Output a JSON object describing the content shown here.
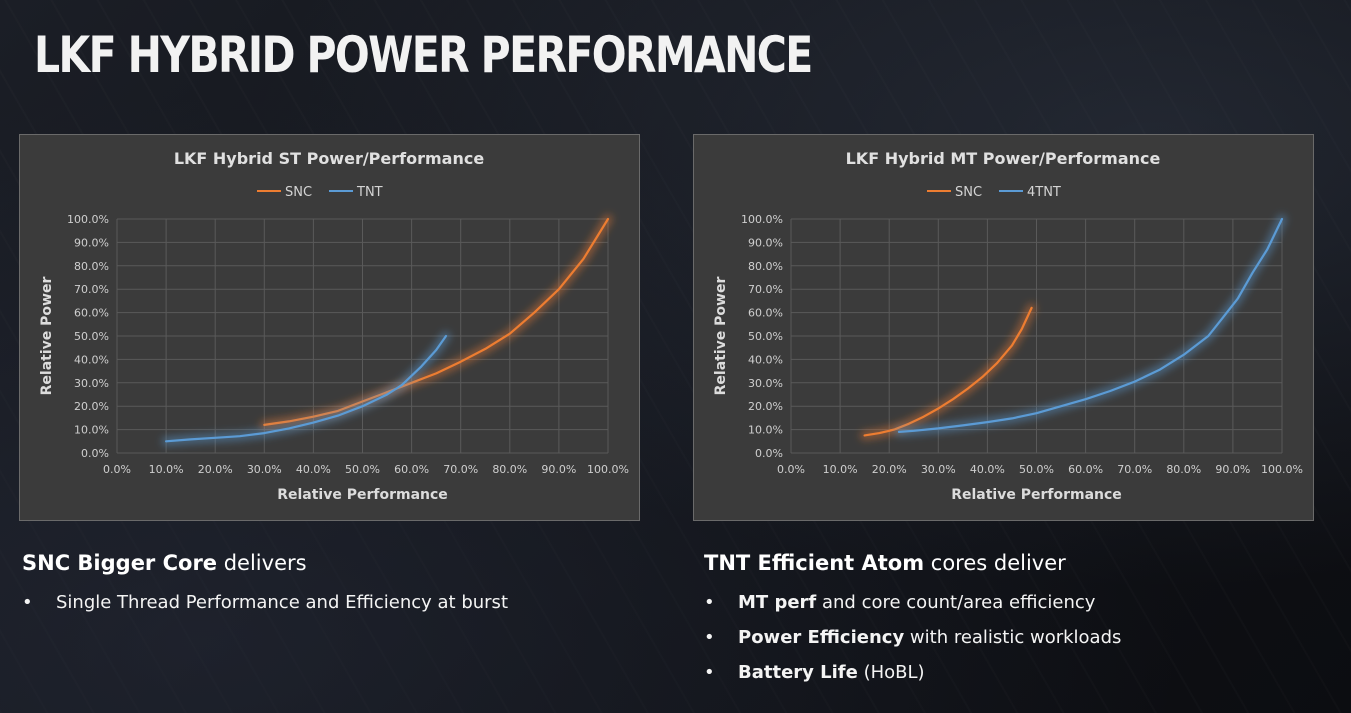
{
  "slide": {
    "title": "LKF HYBRID POWER PERFORMANCE"
  },
  "chart_data": [
    {
      "type": "line",
      "title": "LKF Hybrid ST Power/Performance",
      "xlabel": "Relative Performance",
      "ylabel": "Relative Power",
      "xlim": [
        0,
        100
      ],
      "ylim": [
        0,
        100
      ],
      "x_ticks": [
        "0.0%",
        "10.0%",
        "20.0%",
        "30.0%",
        "40.0%",
        "50.0%",
        "60.0%",
        "70.0%",
        "80.0%",
        "90.0%",
        "100.0%"
      ],
      "y_ticks": [
        "0.0%",
        "10.0%",
        "20.0%",
        "30.0%",
        "40.0%",
        "50.0%",
        "60.0%",
        "70.0%",
        "80.0%",
        "90.0%",
        "100.0%"
      ],
      "grid": true,
      "legend_position": "top",
      "series": [
        {
          "name": "SNC",
          "color": "#ed7d31",
          "x": [
            30,
            35,
            40,
            45,
            50,
            55,
            60,
            65,
            70,
            75,
            80,
            85,
            90,
            95,
            100
          ],
          "y": [
            12,
            13.5,
            15.5,
            18,
            22,
            26,
            30,
            34,
            39,
            44.5,
            51,
            60,
            70,
            83,
            100
          ]
        },
        {
          "name": "TNT",
          "color": "#5b9bd5",
          "x": [
            10,
            15,
            20,
            25,
            30,
            35,
            40,
            45,
            50,
            55,
            58,
            62,
            65,
            67
          ],
          "y": [
            5,
            5.8,
            6.5,
            7.2,
            8.5,
            10.5,
            13,
            16,
            20,
            25,
            29,
            37,
            44,
            50
          ]
        }
      ]
    },
    {
      "type": "line",
      "title": "LKF Hybrid MT Power/Performance",
      "xlabel": "Relative Performance",
      "ylabel": "Relative Power",
      "xlim": [
        0,
        100
      ],
      "ylim": [
        0,
        100
      ],
      "x_ticks": [
        "0.0%",
        "10.0%",
        "20.0%",
        "30.0%",
        "40.0%",
        "50.0%",
        "60.0%",
        "70.0%",
        "80.0%",
        "90.0%",
        "100.0%"
      ],
      "y_ticks": [
        "0.0%",
        "10.0%",
        "20.0%",
        "30.0%",
        "40.0%",
        "50.0%",
        "60.0%",
        "70.0%",
        "80.0%",
        "90.0%",
        "100.0%"
      ],
      "grid": true,
      "legend_position": "top",
      "series": [
        {
          "name": "SNC",
          "color": "#ed7d31",
          "x": [
            15,
            18,
            21,
            24,
            27,
            30,
            33,
            36,
            39,
            42,
            45,
            47,
            49
          ],
          "y": [
            7.5,
            8.5,
            10,
            12.5,
            15.5,
            19,
            23,
            27.5,
            32.5,
            38.5,
            46,
            53,
            62
          ]
        },
        {
          "name": "4TNT",
          "color": "#5b9bd5",
          "x": [
            22,
            25,
            30,
            35,
            40,
            45,
            50,
            55,
            60,
            65,
            70,
            75,
            80,
            85,
            88,
            91,
            94,
            97,
            100
          ],
          "y": [
            9,
            9.5,
            10.5,
            11.8,
            13.2,
            14.8,
            17,
            20,
            23,
            26.5,
            30.5,
            35.5,
            42,
            50,
            58,
            66,
            77,
            87,
            100
          ]
        }
      ]
    }
  ],
  "left_text": {
    "heading_bold": "SNC Bigger Core",
    "heading_rest": " delivers",
    "bullets": [
      {
        "symbol": "•",
        "bold": "",
        "rest": "Single Thread Performance and Efficiency at burst"
      }
    ]
  },
  "right_text": {
    "heading_bold": "TNT Efficient Atom",
    "heading_rest": " cores deliver",
    "bullets": [
      {
        "symbol": "•",
        "bold": "MT perf",
        "rest": " and core count/area efficiency"
      },
      {
        "symbol": "•",
        "bold": "Power Efficiency",
        "rest": " with realistic workloads"
      },
      {
        "symbol": "•",
        "bold": "Battery Life",
        "rest": " (HoBL)"
      }
    ]
  }
}
